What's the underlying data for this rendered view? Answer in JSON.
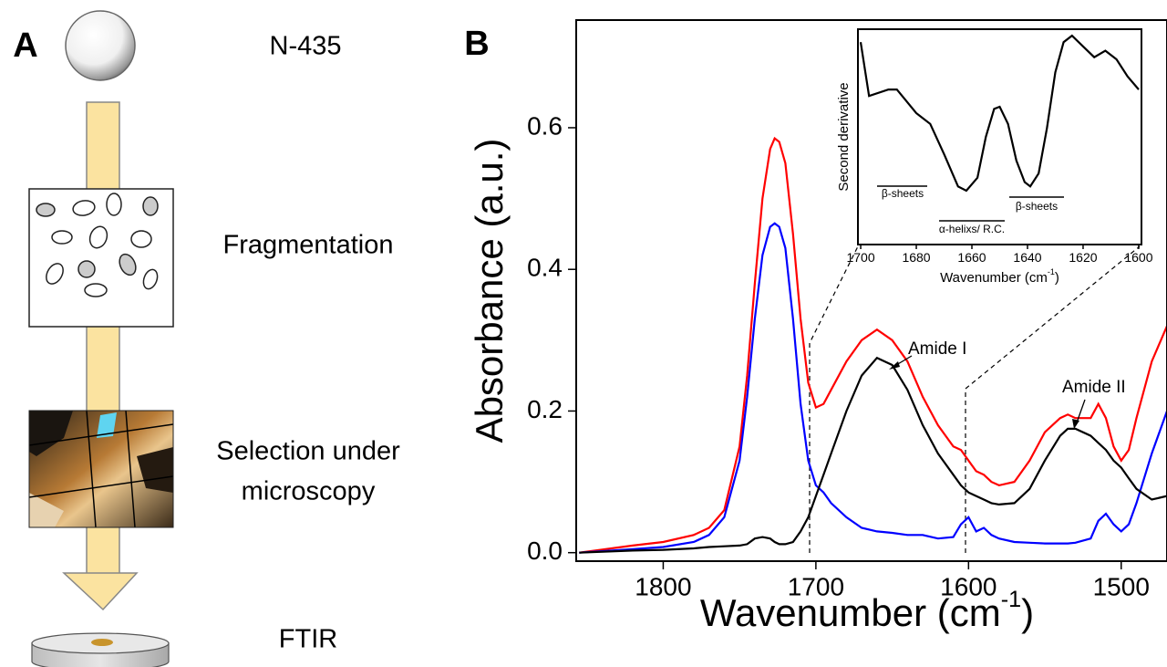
{
  "panel_a": {
    "label": "A",
    "steps": [
      "N-435",
      "Fragmentation",
      "Selection under",
      "microscopy",
      "FTIR"
    ]
  },
  "panel_b_label": "B",
  "chart_data": [
    {
      "type": "line",
      "x_label": "Wavenumber (cm",
      "x_label_superscript": "-1",
      "x_label_end": ")",
      "y_label": "Absorbance (a.u.)",
      "annotations": [
        "Amide I",
        "Amide II"
      ],
      "xlim": [
        1857,
        1470
      ],
      "ylim": [
        -0.012,
        0.752
      ],
      "xticks": [
        1800,
        1700,
        1600,
        1500
      ],
      "yticks": [
        {
          "value": 0,
          "label": "0.0"
        },
        {
          "value": 0.2,
          "label": "0.2"
        },
        {
          "value": 0.4,
          "label": "0.4"
        },
        {
          "value": 0.6,
          "label": "0.6"
        }
      ],
      "x": [
        1855,
        1820,
        1800,
        1780,
        1770,
        1760,
        1750,
        1745,
        1740,
        1735,
        1730,
        1727,
        1724,
        1720,
        1715,
        1710,
        1705,
        1700,
        1695,
        1690,
        1680,
        1670,
        1660,
        1650,
        1640,
        1630,
        1620,
        1610,
        1605,
        1600,
        1595,
        1590,
        1585,
        1580,
        1570,
        1560,
        1550,
        1540,
        1535,
        1530,
        1520,
        1515,
        1510,
        1505,
        1500,
        1495,
        1490,
        1480,
        1470
      ],
      "series": [
        {
          "color": "#ff0000",
          "values": [
            0,
            0.01,
            0.015,
            0.025,
            0.035,
            0.06,
            0.15,
            0.25,
            0.38,
            0.5,
            0.57,
            0.585,
            0.58,
            0.55,
            0.45,
            0.33,
            0.24,
            0.205,
            0.21,
            0.23,
            0.27,
            0.3,
            0.315,
            0.3,
            0.27,
            0.22,
            0.18,
            0.15,
            0.145,
            0.13,
            0.115,
            0.11,
            0.1,
            0.095,
            0.1,
            0.13,
            0.17,
            0.19,
            0.195,
            0.19,
            0.19,
            0.21,
            0.19,
            0.15,
            0.13,
            0.145,
            0.19,
            0.27,
            0.32
          ]
        },
        {
          "color": "#0000ff",
          "values": [
            0,
            0.005,
            0.008,
            0.015,
            0.025,
            0.05,
            0.13,
            0.22,
            0.33,
            0.42,
            0.46,
            0.465,
            0.46,
            0.43,
            0.33,
            0.21,
            0.13,
            0.095,
            0.085,
            0.07,
            0.05,
            0.035,
            0.03,
            0.028,
            0.025,
            0.025,
            0.02,
            0.022,
            0.04,
            0.05,
            0.03,
            0.035,
            0.025,
            0.02,
            0.015,
            0.014,
            0.013,
            0.013,
            0.013,
            0.014,
            0.02,
            0.045,
            0.055,
            0.04,
            0.03,
            0.04,
            0.07,
            0.14,
            0.2
          ]
        },
        {
          "color": "#000000",
          "values": [
            0,
            0.003,
            0.004,
            0.006,
            0.008,
            0.009,
            0.01,
            0.012,
            0.02,
            0.022,
            0.02,
            0.015,
            0.012,
            0.012,
            0.015,
            0.03,
            0.05,
            0.08,
            0.11,
            0.14,
            0.2,
            0.25,
            0.275,
            0.265,
            0.23,
            0.18,
            0.14,
            0.11,
            0.095,
            0.085,
            0.08,
            0.075,
            0.07,
            0.068,
            0.07,
            0.09,
            0.13,
            0.165,
            0.175,
            0.175,
            0.165,
            0.155,
            0.145,
            0.13,
            0.12,
            0.105,
            0.09,
            0.075,
            0.08
          ]
        }
      ]
    },
    {
      "type": "line",
      "x_label": "Wavenumber (cm",
      "x_label_superscript": "-1",
      "x_label_end": ")",
      "y_label": "Second derivative",
      "annotations": [
        "β-sheets",
        "α-helixs/ R.C.",
        "β-sheets"
      ],
      "xlim": [
        1701,
        1599
      ],
      "ylim": [
        0,
        1
      ],
      "xticks": [
        1700,
        1680,
        1660,
        1640,
        1620,
        1600
      ],
      "x": [
        1700,
        1697,
        1690,
        1687,
        1680,
        1675,
        1670,
        1665,
        1662,
        1658,
        1655,
        1652,
        1650,
        1647,
        1644,
        1641,
        1639,
        1636,
        1633,
        1630,
        1627,
        1624,
        1620,
        1616,
        1612,
        1608,
        1604,
        1600
      ],
      "series": [
        {
          "color": "#000000",
          "values": [
            0.94,
            0.69,
            0.72,
            0.72,
            0.61,
            0.56,
            0.42,
            0.27,
            0.25,
            0.31,
            0.5,
            0.63,
            0.64,
            0.56,
            0.39,
            0.29,
            0.27,
            0.33,
            0.54,
            0.8,
            0.94,
            0.97,
            0.92,
            0.87,
            0.9,
            0.86,
            0.78,
            0.72
          ]
        }
      ]
    }
  ]
}
